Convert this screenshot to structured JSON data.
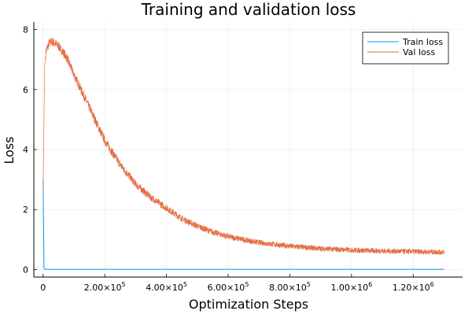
{
  "chart_data": {
    "type": "line",
    "title": "Training and validation loss",
    "xlabel": "Optimization Steps",
    "ylabel": "Loss",
    "xlim": [
      -30000,
      1360000
    ],
    "ylim": [
      -0.25,
      8.25
    ],
    "grid": true,
    "legend_position": "top-right",
    "x_ticks": [
      0,
      200000,
      400000,
      600000,
      800000,
      1000000,
      1200000
    ],
    "x_tick_labels": [
      "0",
      "2.00×10^5",
      "4.00×10^5",
      "6.00×10^5",
      "8.00×10^5",
      "1.00×10^6",
      "1.20×10^6"
    ],
    "y_ticks": [
      0,
      2,
      4,
      6,
      8
    ],
    "y_tick_labels": [
      "0",
      "2",
      "4",
      "6",
      "8"
    ],
    "series": [
      {
        "name": "Train loss",
        "color": "#009af9",
        "x": [
          0,
          3000,
          6000,
          1300000
        ],
        "y": [
          3.0,
          0.05,
          0.01,
          0.01
        ]
      },
      {
        "name": "Val loss",
        "color": "#e26f46",
        "x": [
          0,
          5000,
          10000,
          20000,
          30000,
          50000,
          75000,
          100000,
          150000,
          200000,
          250000,
          300000,
          350000,
          400000,
          450000,
          500000,
          550000,
          600000,
          700000,
          800000,
          900000,
          1000000,
          1100000,
          1200000,
          1300000
        ],
        "y": [
          2.5,
          6.8,
          7.3,
          7.55,
          7.6,
          7.45,
          7.1,
          6.5,
          5.4,
          4.3,
          3.5,
          2.85,
          2.4,
          2.05,
          1.7,
          1.45,
          1.25,
          1.1,
          0.9,
          0.78,
          0.7,
          0.65,
          0.62,
          0.6,
          0.58
        ],
        "noise_amplitude": 0.15
      }
    ]
  }
}
